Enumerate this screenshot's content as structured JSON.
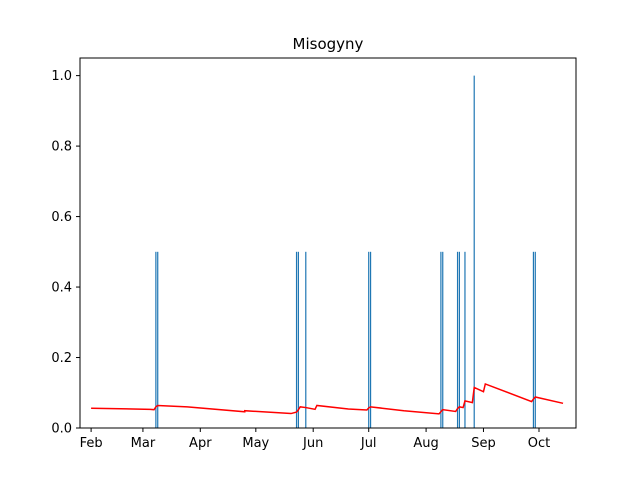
{
  "chart_data": {
    "type": "bar+line",
    "title": "Misogyny",
    "xlabel": "",
    "ylabel": "",
    "x_axis": {
      "type": "date",
      "range": [
        "2023-01-26",
        "2023-10-21"
      ],
      "ticks": [
        {
          "date": "2023-02-01",
          "label": "Feb"
        },
        {
          "date": "2023-03-01",
          "label": "Mar"
        },
        {
          "date": "2023-04-01",
          "label": "Apr"
        },
        {
          "date": "2023-05-01",
          "label": "May"
        },
        {
          "date": "2023-06-01",
          "label": "Jun"
        },
        {
          "date": "2023-07-01",
          "label": "Jul"
        },
        {
          "date": "2023-08-01",
          "label": "Aug"
        },
        {
          "date": "2023-09-01",
          "label": "Sep"
        },
        {
          "date": "2023-10-01",
          "label": "Oct"
        }
      ]
    },
    "ylim": [
      0,
      1.05
    ],
    "yticks": [
      0.0,
      0.2,
      0.4,
      0.6,
      0.8,
      1.0
    ],
    "ytick_labels": [
      "0.0",
      "0.2",
      "0.4",
      "0.6",
      "0.8",
      "1.0"
    ],
    "grid": false,
    "bar_color": "#1f77b4",
    "line_color": "#ff0000",
    "bars": [
      {
        "date": "2023-03-08",
        "value": 0.5
      },
      {
        "date": "2023-03-09",
        "value": 0.5
      },
      {
        "date": "2023-05-23",
        "value": 0.5
      },
      {
        "date": "2023-05-24",
        "value": 0.5
      },
      {
        "date": "2023-05-28",
        "value": 0.5
      },
      {
        "date": "2023-07-01",
        "value": 0.5
      },
      {
        "date": "2023-07-02",
        "value": 0.5
      },
      {
        "date": "2023-08-09",
        "value": 0.5
      },
      {
        "date": "2023-08-10",
        "value": 0.5
      },
      {
        "date": "2023-08-18",
        "value": 0.5
      },
      {
        "date": "2023-08-19",
        "value": 0.5
      },
      {
        "date": "2023-08-22",
        "value": 0.5
      },
      {
        "date": "2023-08-27",
        "value": 1.0
      },
      {
        "date": "2023-09-28",
        "value": 0.5
      },
      {
        "date": "2023-09-29",
        "value": 0.5
      }
    ],
    "line": [
      {
        "date": "2023-02-01",
        "value": 0.056
      },
      {
        "date": "2023-03-05",
        "value": 0.053
      },
      {
        "date": "2023-03-07",
        "value": 0.052
      },
      {
        "date": "2023-03-08",
        "value": 0.06
      },
      {
        "date": "2023-03-09",
        "value": 0.064
      },
      {
        "date": "2023-03-25",
        "value": 0.06
      },
      {
        "date": "2023-04-25",
        "value": 0.046
      },
      {
        "date": "2023-04-25",
        "value": 0.049
      },
      {
        "date": "2023-05-20",
        "value": 0.041
      },
      {
        "date": "2023-05-23",
        "value": 0.045
      },
      {
        "date": "2023-05-24",
        "value": 0.052
      },
      {
        "date": "2023-05-25",
        "value": 0.06
      },
      {
        "date": "2023-05-28",
        "value": 0.058
      },
      {
        "date": "2023-06-02",
        "value": 0.053
      },
      {
        "date": "2023-06-03",
        "value": 0.064
      },
      {
        "date": "2023-06-20",
        "value": 0.054
      },
      {
        "date": "2023-06-30",
        "value": 0.051
      },
      {
        "date": "2023-07-01",
        "value": 0.057
      },
      {
        "date": "2023-07-02",
        "value": 0.06
      },
      {
        "date": "2023-07-20",
        "value": 0.049
      },
      {
        "date": "2023-08-08",
        "value": 0.04
      },
      {
        "date": "2023-08-09",
        "value": 0.046
      },
      {
        "date": "2023-08-10",
        "value": 0.052
      },
      {
        "date": "2023-08-17",
        "value": 0.047
      },
      {
        "date": "2023-08-18",
        "value": 0.055
      },
      {
        "date": "2023-08-19",
        "value": 0.06
      },
      {
        "date": "2023-08-21",
        "value": 0.058
      },
      {
        "date": "2023-08-22",
        "value": 0.077
      },
      {
        "date": "2023-08-26",
        "value": 0.072
      },
      {
        "date": "2023-08-27",
        "value": 0.115
      },
      {
        "date": "2023-09-01",
        "value": 0.103
      },
      {
        "date": "2023-09-02",
        "value": 0.125
      },
      {
        "date": "2023-09-27",
        "value": 0.075
      },
      {
        "date": "2023-09-28",
        "value": 0.082
      },
      {
        "date": "2023-09-29",
        "value": 0.088
      },
      {
        "date": "2023-10-14",
        "value": 0.07
      }
    ]
  }
}
